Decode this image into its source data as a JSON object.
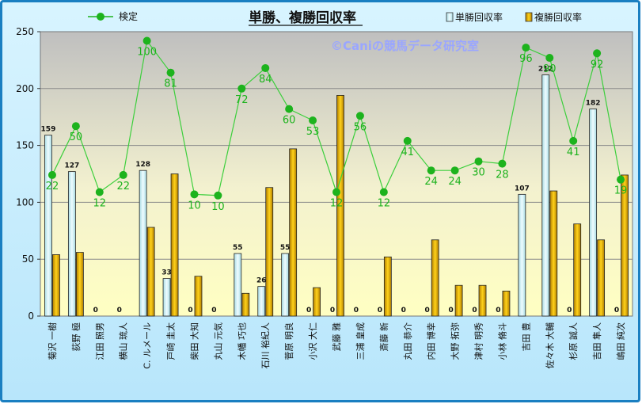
{
  "chart_data": {
    "type": "bar",
    "title": "単勝、複勝回収率",
    "watermark": "©Caniの競馬データ研究室",
    "ylim": [
      0,
      250
    ],
    "yticks": [
      0,
      50,
      100,
      150,
      200,
      250
    ],
    "grid": true,
    "legend_placement": "top",
    "categories": [
      "菊沢 一樹",
      "荻野 極",
      "江田 照男",
      "横山 琉人",
      "C. ルメール",
      "戸崎 圭太",
      "柴田 大知",
      "丸山 元気",
      "木幡 巧也",
      "石川 裕紀人",
      "菅原 明良",
      "小沢 大仁",
      "武藤 雅",
      "三浦 皇成",
      "斎藤 新",
      "丸田 恭介",
      "内田 博幸",
      "大野 拓弥",
      "津村 明秀",
      "小林 脩斗",
      "吉田 豊",
      "佐々木 大輔",
      "杉原 誠人",
      "吉田 隼人",
      "嶋田 純次"
    ],
    "series": [
      {
        "name": "単勝回収率",
        "type": "bar",
        "color": "#d6f1f5",
        "values": [
          159,
          127,
          0,
          0,
          128,
          33,
          0,
          0,
          55,
          26,
          55,
          0,
          0,
          0,
          0,
          0,
          0,
          0,
          0,
          0,
          107,
          212,
          0,
          182,
          0
        ],
        "labels": [
          "159",
          "127",
          "0",
          "0",
          "128",
          "33",
          "0",
          "0",
          "55",
          "26",
          "55",
          "0",
          "0",
          "0",
          "0",
          "0",
          "0",
          "0",
          "0",
          "0",
          "107",
          "212",
          "0",
          "182",
          "0"
        ]
      },
      {
        "name": "複勝回収率",
        "type": "bar",
        "color": "#e8b200",
        "values": [
          54,
          56,
          0,
          0,
          78,
          125,
          35,
          0,
          20,
          113,
          147,
          25,
          194,
          0,
          52,
          0,
          67,
          27,
          27,
          22,
          0,
          110,
          81,
          67,
          124
        ]
      },
      {
        "name": "検定",
        "type": "line",
        "color": "#1db31d",
        "values": [
          124,
          167,
          109,
          124,
          242,
          214,
          107,
          106,
          200,
          218,
          182,
          172,
          109,
          176,
          109,
          154,
          128,
          128,
          136,
          134,
          236,
          227,
          154,
          231,
          120
        ],
        "labels": [
          "22",
          "50",
          "12",
          "22",
          "100",
          "81",
          "10",
          "10",
          "72",
          "84",
          "60",
          "53",
          "12",
          "56",
          "12",
          "41",
          "24",
          "24",
          "30",
          "28",
          "96",
          "90",
          "41",
          "92",
          "19"
        ]
      }
    ]
  }
}
